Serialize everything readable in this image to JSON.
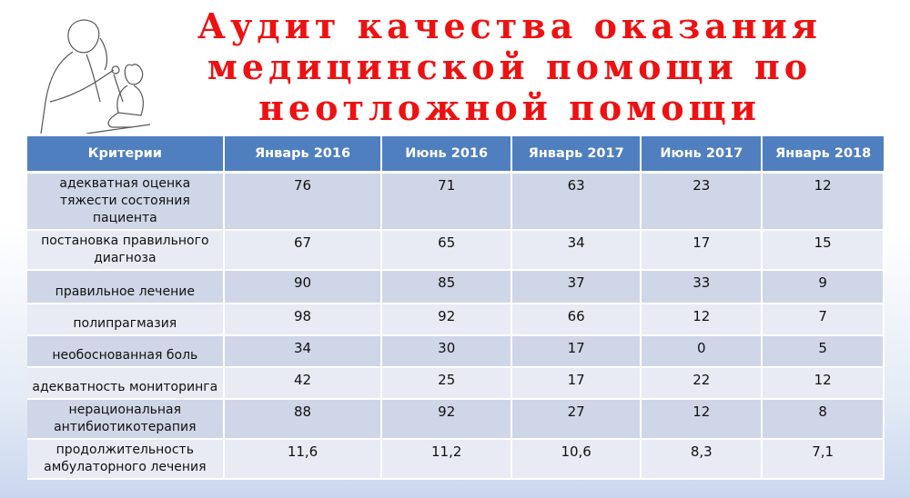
{
  "title": "Аудит качества оказания медицинской помощи по неотложной помощи",
  "illustration": "doctor-examining-child-sketch",
  "table": {
    "headers": [
      "Критерии",
      "Январь 2016",
      "Июнь 2016",
      "Январь 2017",
      "Июнь 2017",
      "Январь 2018"
    ],
    "rows": [
      {
        "criterion": "адекватная оценка тяжести состояния пациента",
        "values": [
          "76",
          "71",
          "63",
          "23",
          "12"
        ]
      },
      {
        "criterion": "постановка правильного диагноза",
        "values": [
          "67",
          "65",
          "34",
          "17",
          "15"
        ]
      },
      {
        "criterion": "правильное лечение",
        "values": [
          "90",
          "85",
          "37",
          "33",
          "9"
        ]
      },
      {
        "criterion": "полипрагмазия",
        "values": [
          "98",
          "92",
          "66",
          "12",
          "7"
        ]
      },
      {
        "criterion": "необоснованная боль",
        "values": [
          "34",
          "30",
          "17",
          "0",
          "5"
        ]
      },
      {
        "criterion": "адекватность мониторинга",
        "values": [
          "42",
          "25",
          "17",
          "22",
          "12"
        ]
      },
      {
        "criterion": "нерациональная антибиотикотерапия",
        "values": [
          "88",
          "92",
          "27",
          "12",
          "8"
        ]
      },
      {
        "criterion": "продолжительность амбулаторного лечения",
        "values": [
          "11,6",
          "11,2",
          "10,6",
          "8,3",
          "7,1"
        ]
      }
    ]
  },
  "colors": {
    "title": "#ee1111",
    "header": "#4f7fbf",
    "row_dark": "#cfd6e7",
    "row_light": "#e8ebf4"
  }
}
